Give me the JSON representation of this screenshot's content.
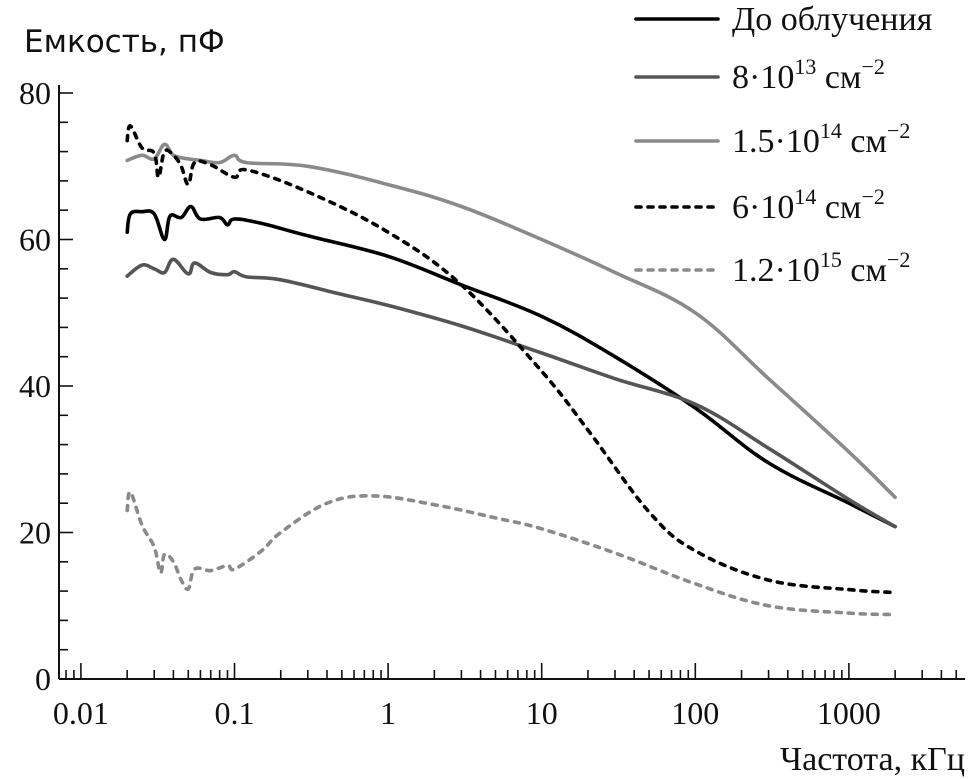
{
  "chart_data": {
    "type": "line",
    "title": "",
    "xlabel": "Частота, кГц",
    "ylabel": "Емкость, пФ",
    "xscale": "log",
    "xlim": [
      0.0072,
      5700
    ],
    "ylim": [
      0,
      80
    ],
    "x_ticks": [
      {
        "value": 0.01,
        "label": "0.01"
      },
      {
        "value": 0.1,
        "label": "0.1"
      },
      {
        "value": 1,
        "label": "1"
      },
      {
        "value": 10,
        "label": "10"
      },
      {
        "value": 100,
        "label": "100"
      },
      {
        "value": 1000,
        "label": "1000"
      }
    ],
    "y_ticks": [
      {
        "value": 0,
        "label": "0"
      },
      {
        "value": 20,
        "label": "20"
      },
      {
        "value": 40,
        "label": "40"
      },
      {
        "value": 60,
        "label": "60"
      },
      {
        "value": 80,
        "label": "80"
      }
    ],
    "y_minor_step": 4,
    "grid": false,
    "legend_position": "top-right",
    "series": [
      {
        "name": "До облучения",
        "legend": {
          "base": "До облучения",
          "exp": "",
          "unit": "",
          "unit_exp": ""
        },
        "color": "#000000",
        "style": "solid",
        "x": [
          0.02,
          0.021,
          0.025,
          0.03,
          0.035,
          0.038,
          0.045,
          0.052,
          0.06,
          0.08,
          0.09,
          0.1,
          0.15,
          0.3,
          1,
          3,
          10,
          30,
          100,
          300,
          1000,
          2000
        ],
        "y": [
          61,
          63.5,
          63.8,
          63.5,
          60,
          63.2,
          63,
          64.5,
          62.8,
          63,
          62,
          62.8,
          62.2,
          60.5,
          57.7,
          53.8,
          49.5,
          44,
          37,
          29.5,
          24,
          20.8
        ]
      },
      {
        "name": "8·10^13 см^-2",
        "legend": {
          "base": "8·10",
          "exp": "13",
          "unit": " см",
          "unit_exp": "−2"
        },
        "color": "#555555",
        "style": "solid",
        "x": [
          0.02,
          0.025,
          0.03,
          0.035,
          0.04,
          0.05,
          0.055,
          0.07,
          0.09,
          0.1,
          0.12,
          0.2,
          0.5,
          1,
          3,
          10,
          30,
          100,
          300,
          1000,
          2000
        ],
        "y": [
          55,
          56.5,
          56,
          55.5,
          57.3,
          55.3,
          56.8,
          55.5,
          55.2,
          55.6,
          54.9,
          54.5,
          52.5,
          51,
          48.2,
          44.5,
          41,
          37.5,
          31.5,
          24.5,
          20.8
        ]
      },
      {
        "name": "1.5·10^14 см^-2",
        "legend": {
          "base": "1.5·10",
          "exp": "14",
          "unit": " см",
          "unit_exp": "−2"
        },
        "color": "#8a8a8a",
        "style": "solid",
        "x": [
          0.02,
          0.025,
          0.03,
          0.035,
          0.04,
          0.05,
          0.06,
          0.08,
          0.1,
          0.12,
          0.3,
          1,
          3,
          10,
          30,
          100,
          300,
          1000,
          2000
        ],
        "y": [
          70.8,
          71.5,
          71,
          73,
          71.5,
          71,
          70.8,
          70.5,
          71.5,
          70.5,
          70,
          67.5,
          64.5,
          60,
          55.5,
          50,
          41,
          31,
          24.8
        ]
      },
      {
        "name": "6·10^14 см^-2",
        "legend": {
          "base": "6·10",
          "exp": "14",
          "unit": " см",
          "unit_exp": "−2"
        },
        "color": "#000000",
        "style": "dotted",
        "x": [
          0.02,
          0.021,
          0.025,
          0.03,
          0.032,
          0.035,
          0.04,
          0.045,
          0.05,
          0.055,
          0.07,
          0.1,
          0.12,
          0.3,
          1,
          3,
          10,
          20,
          50,
          100,
          300,
          1000,
          2000
        ],
        "y": [
          73.5,
          75.5,
          72.5,
          71.8,
          68.5,
          72,
          71.5,
          70,
          67.5,
          70.5,
          70.2,
          68.5,
          69.5,
          66.5,
          61,
          53.8,
          42,
          34,
          22.8,
          17.5,
          13.5,
          12.2,
          11.8
        ]
      },
      {
        "name": "1.2·10^15 см^-2",
        "legend": {
          "base": "1.2·10",
          "exp": "15",
          "unit": " см",
          "unit_exp": "−2"
        },
        "color": "#8a8a8a",
        "style": "dotted",
        "x": [
          0.02,
          0.021,
          0.025,
          0.03,
          0.033,
          0.035,
          0.04,
          0.045,
          0.05,
          0.055,
          0.07,
          0.09,
          0.1,
          0.15,
          0.2,
          0.4,
          0.8,
          2,
          5,
          10,
          30,
          100,
          300,
          1000,
          2000
        ],
        "y": [
          23,
          25.5,
          21,
          18,
          14.5,
          17,
          16,
          13.5,
          12.3,
          15,
          14.8,
          15.5,
          15,
          17.5,
          20,
          24,
          25,
          23.8,
          22,
          20.5,
          17.2,
          13,
          10,
          9,
          8.8
        ]
      }
    ]
  }
}
